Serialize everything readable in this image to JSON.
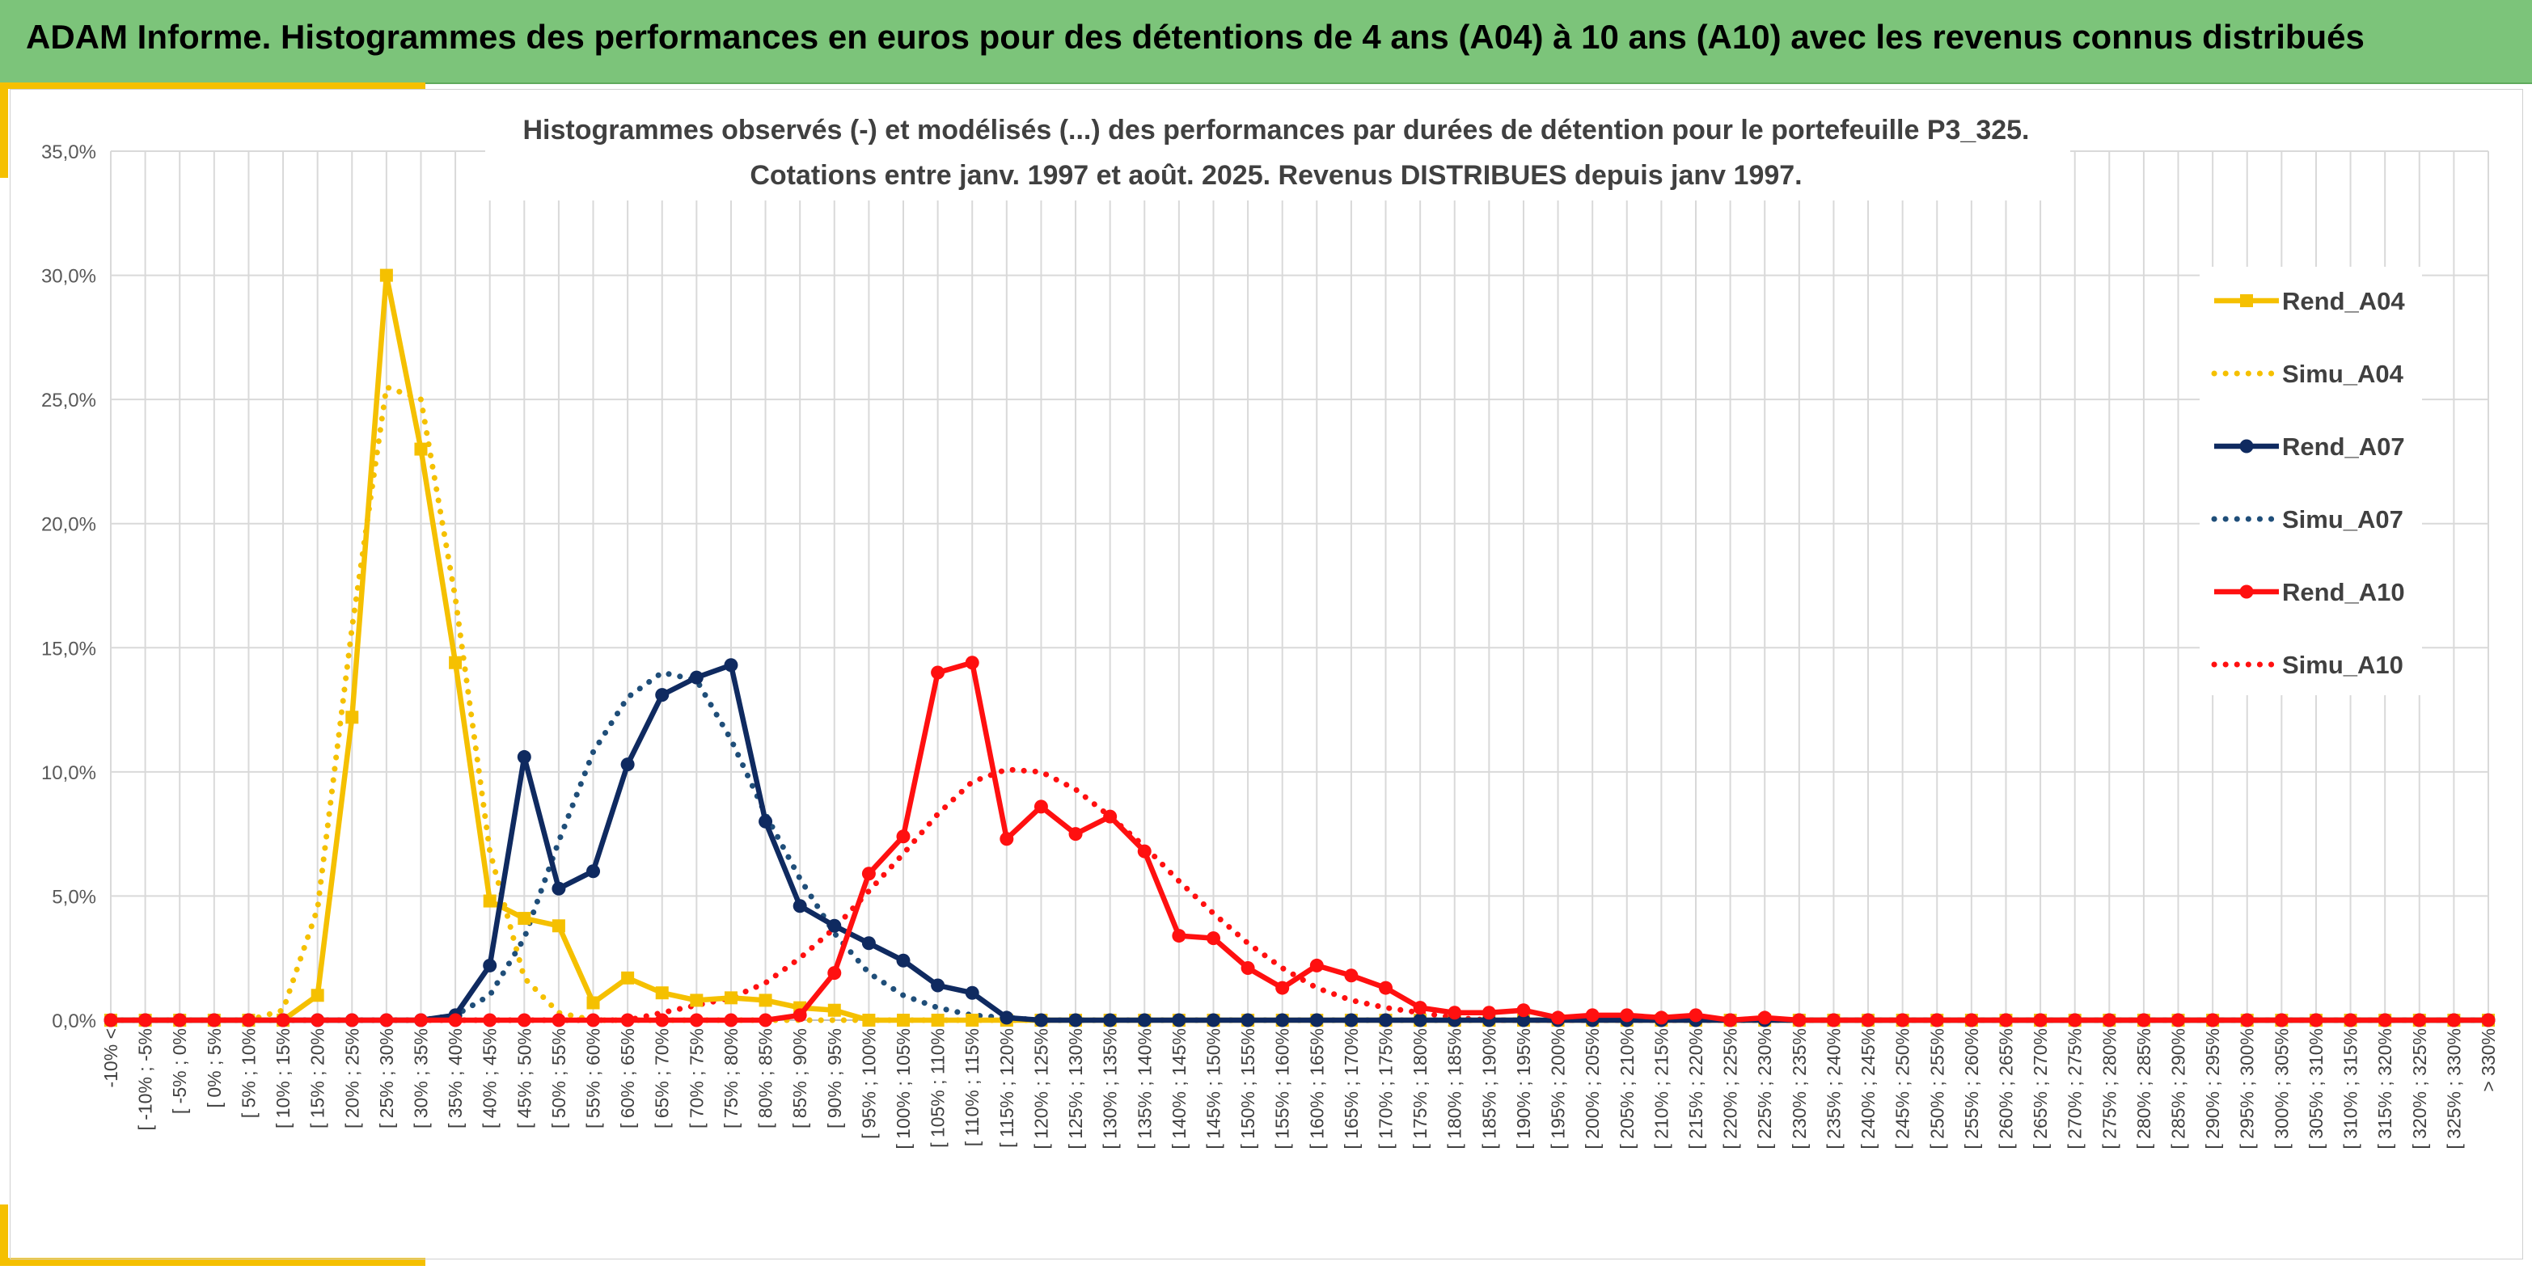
{
  "banner": {
    "title": "ADAM Informe. Histogrammes des performances en euros pour des détentions de 4 ans (A04) à 10 ans (A10) avec les revenus connus distribués"
  },
  "chart_data": {
    "type": "line",
    "title_line1": "Histogrammes observés (-) et modélisés (...) des performances par durées de détention pour le portefeuille P3_325.",
    "title_line2": "Cotations entre janv. 1997 et août. 2025. Revenus DISTRIBUES depuis janv 1997.",
    "ylim": [
      0,
      35
    ],
    "yticks": [
      "0,0%",
      "5,0%",
      "10,0%",
      "15,0%",
      "20,0%",
      "25,0%",
      "30,0%",
      "35,0%"
    ],
    "grid": true,
    "legend_position": "right",
    "categories": [
      "-10% <",
      "[ -10% ; -5%",
      "[ -5% ; 0%",
      "[ 0% ; 5%",
      "[ 5% ; 10%",
      "[ 10% ; 15%",
      "[ 15% ; 20%",
      "[ 20% ; 25%",
      "[ 25% ; 30%",
      "[ 30% ; 35%",
      "[ 35% ; 40%",
      "[ 40% ; 45%",
      "[ 45% ; 50%",
      "[ 50% ; 55%",
      "[ 55% ; 60%",
      "[ 60% ; 65%",
      "[ 65% ; 70%",
      "[ 70% ; 75%",
      "[ 75% ; 80%",
      "[ 80% ; 85%",
      "[ 85% ; 90%",
      "[ 90% ; 95%",
      "[ 95% ; 100%",
      "[ 100% ; 105%",
      "[ 105% ; 110%",
      "[ 110% ; 115%",
      "[ 115% ; 120%",
      "[ 120% ; 125%",
      "[ 125% ; 130%",
      "[ 130% ; 135%",
      "[ 135% ; 140%",
      "[ 140% ; 145%",
      "[ 145% ; 150%",
      "[ 150% ; 155%",
      "[ 155% ; 160%",
      "[ 160% ; 165%",
      "[ 165% ; 170%",
      "[ 170% ; 175%",
      "[ 175% ; 180%",
      "[ 180% ; 185%",
      "[ 185% ; 190%",
      "[ 190% ; 195%",
      "[ 195% ; 200%",
      "[ 200% ; 205%",
      "[ 205% ; 210%",
      "[ 210% ; 215%",
      "[ 215% ; 220%",
      "[ 220% ; 225%",
      "[ 225% ; 230%",
      "[ 230% ; 235%",
      "[ 235% ; 240%",
      "[ 240% ; 245%",
      "[ 245% ; 250%",
      "[ 250% ; 255%",
      "[ 255% ; 260%",
      "[ 260% ; 265%",
      "[ 265% ; 270%",
      "[ 270% ; 275%",
      "[ 275% ; 280%",
      "[ 280% ; 285%",
      "[ 285% ; 290%",
      "[ 290% ; 295%",
      "[ 295% ; 300%",
      "[ 300% ; 305%",
      "[ 305% ; 310%",
      "[ 310% ; 315%",
      "[ 315% ; 320%",
      "[ 320% ; 325%",
      "[ 325% ; 330%",
      "> 330%"
    ],
    "series": [
      {
        "name": "Rend_A04",
        "color": "#f5c000",
        "style": "solid",
        "marker": "square",
        "values": [
          0,
          0,
          0,
          0,
          0,
          0,
          1.0,
          12.2,
          30.0,
          23.0,
          14.4,
          4.8,
          4.1,
          3.8,
          0.7,
          1.7,
          1.1,
          0.8,
          0.9,
          0.8,
          0.5,
          0.4,
          0,
          0,
          0,
          0,
          0,
          0,
          0,
          0,
          0,
          0,
          0,
          0,
          0,
          0,
          0,
          0,
          0,
          0,
          0,
          0,
          0,
          0,
          0,
          0,
          0,
          0,
          0,
          0,
          0,
          0,
          0,
          0,
          0,
          0,
          0,
          0,
          0,
          0,
          0,
          0,
          0,
          0,
          0,
          0,
          0,
          0,
          0,
          0
        ]
      },
      {
        "name": "Simu_A04",
        "color": "#f5c000",
        "style": "dotted",
        "marker": "none",
        "values": [
          0,
          0,
          0,
          0,
          0,
          0.4,
          4.5,
          15.8,
          25.5,
          25.0,
          17.0,
          6.8,
          1.7,
          0.3,
          0,
          0,
          0,
          0,
          0,
          0,
          0,
          0,
          0,
          0,
          0,
          0,
          0,
          0,
          0,
          0,
          0,
          0,
          0,
          0,
          0,
          0,
          0,
          0,
          0,
          0,
          0,
          0,
          0,
          0,
          0,
          0,
          0,
          0,
          0,
          0,
          0,
          0,
          0,
          0,
          0,
          0,
          0,
          0,
          0,
          0,
          0,
          0,
          0,
          0,
          0,
          0,
          0,
          0,
          0,
          0
        ]
      },
      {
        "name": "Rend_A07",
        "color": "#0f2a60",
        "style": "solid",
        "marker": "circle",
        "values": [
          0,
          0,
          0,
          0,
          0,
          0,
          0,
          0,
          0,
          0,
          0.2,
          2.2,
          10.6,
          5.3,
          6.0,
          10.3,
          13.1,
          13.8,
          14.3,
          8.0,
          4.6,
          3.8,
          3.1,
          2.4,
          1.4,
          1.1,
          0.1,
          0,
          0,
          0,
          0,
          0,
          0,
          0,
          0,
          0,
          0,
          0,
          0,
          0,
          0,
          0,
          0,
          0,
          0,
          0,
          0,
          0,
          0,
          0,
          0,
          0,
          0,
          0,
          0,
          0,
          0,
          0,
          0,
          0,
          0,
          0,
          0,
          0,
          0,
          0,
          0,
          0,
          0,
          0
        ]
      },
      {
        "name": "Simu_A07",
        "color": "#1f4e79",
        "style": "dotted",
        "marker": "none",
        "values": [
          0,
          0,
          0,
          0,
          0,
          0,
          0,
          0,
          0,
          0,
          0.2,
          1.0,
          3.3,
          7.2,
          10.8,
          13.0,
          14.0,
          13.7,
          11.3,
          8.3,
          5.7,
          3.5,
          1.9,
          1.0,
          0.5,
          0.2,
          0.1,
          0,
          0,
          0,
          0,
          0,
          0,
          0,
          0,
          0,
          0,
          0,
          0,
          0,
          0,
          0,
          0,
          0,
          0,
          0,
          0,
          0,
          0,
          0,
          0,
          0,
          0,
          0,
          0,
          0,
          0,
          0,
          0,
          0,
          0,
          0,
          0,
          0,
          0,
          0,
          0,
          0,
          0,
          0
        ]
      },
      {
        "name": "Rend_A10",
        "color": "#ff1010",
        "style": "solid",
        "marker": "circle",
        "values": [
          0,
          0,
          0,
          0,
          0,
          0,
          0,
          0,
          0,
          0,
          0,
          0,
          0,
          0,
          0,
          0,
          0,
          0,
          0,
          0,
          0.2,
          1.9,
          5.9,
          7.4,
          14.0,
          14.4,
          7.3,
          8.6,
          7.5,
          8.2,
          6.8,
          3.4,
          3.3,
          2.1,
          1.3,
          2.2,
          1.8,
          1.3,
          0.5,
          0.3,
          0.3,
          0.4,
          0.1,
          0.2,
          0.2,
          0.1,
          0.2,
          0,
          0.1,
          0,
          0,
          0,
          0,
          0,
          0,
          0,
          0,
          0,
          0,
          0,
          0,
          0,
          0,
          0,
          0,
          0,
          0,
          0,
          0,
          0
        ]
      },
      {
        "name": "Simu_A10",
        "color": "#ff1010",
        "style": "dotted",
        "marker": "none",
        "values": [
          0,
          0,
          0,
          0,
          0,
          0,
          0,
          0,
          0,
          0,
          0,
          0,
          0,
          0,
          0,
          0,
          0.3,
          0.6,
          0.9,
          1.5,
          2.5,
          3.7,
          5.2,
          6.7,
          8.3,
          9.6,
          10.1,
          10.0,
          9.3,
          8.2,
          7.0,
          5.6,
          4.3,
          3.1,
          2.1,
          1.3,
          0.8,
          0.5,
          0.3,
          0.1,
          0,
          0,
          0,
          0,
          0,
          0,
          0,
          0,
          0,
          0,
          0,
          0,
          0,
          0,
          0,
          0,
          0,
          0,
          0,
          0,
          0,
          0,
          0,
          0,
          0,
          0,
          0,
          0,
          0,
          0
        ]
      }
    ]
  }
}
